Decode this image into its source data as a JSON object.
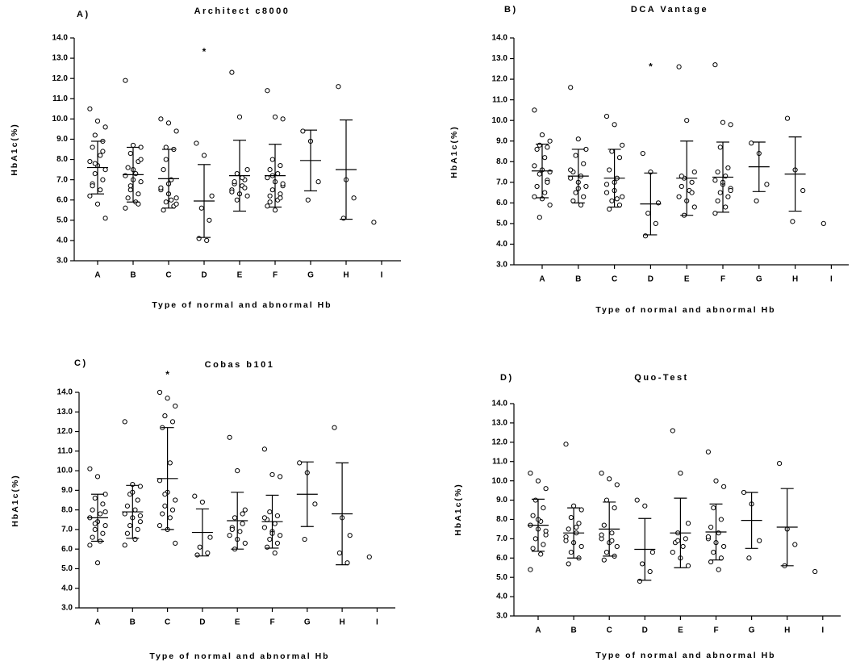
{
  "chart_data": [
    {
      "type": "dot",
      "panel": "A)",
      "title": "Architect c8000",
      "ylabel": "HbA1c(%)",
      "xlabel": "Type of normal and abnormal Hb",
      "categories": [
        "A",
        "B",
        "C",
        "D",
        "E",
        "F",
        "G",
        "H",
        "I"
      ],
      "points": [
        [
          10.5,
          9.9,
          9.6,
          9.2,
          8.9,
          8.6,
          8.2,
          7.9,
          7.7,
          7.5,
          7.3,
          7.0,
          6.8,
          6.5,
          6.2,
          5.8,
          5.1,
          7.8,
          8.4,
          6.7
        ],
        [
          11.9,
          8.7,
          8.6,
          8.3,
          7.9,
          7.6,
          7.3,
          7.2,
          7.0,
          6.9,
          6.5,
          6.3,
          6.1,
          5.9,
          5.6,
          7.5,
          8.0,
          6.7,
          5.8
        ],
        [
          10.0,
          9.8,
          9.4,
          8.6,
          8.5,
          7.5,
          7.0,
          6.5,
          6.3,
          6.1,
          5.9,
          5.7,
          5.5,
          6.0,
          6.6,
          6.8,
          5.8,
          8.0
        ],
        [
          8.8,
          8.2,
          6.2,
          5.6,
          5.0,
          4.1,
          4.0
        ],
        [
          12.3,
          10.1,
          7.5,
          7.3,
          7.0,
          6.8,
          6.7,
          6.5,
          6.3,
          6.2,
          6.0,
          6.6,
          6.9,
          7.1,
          6.4
        ],
        [
          11.4,
          10.1,
          10.0,
          8.0,
          7.7,
          7.5,
          7.3,
          7.1,
          6.9,
          6.7,
          6.5,
          6.3,
          6.2,
          6.0,
          5.7,
          5.5,
          6.8,
          7.2,
          6.1,
          5.9
        ],
        [
          9.4,
          8.9,
          6.9,
          6.0
        ],
        [
          11.6,
          7.0,
          6.1,
          5.1
        ],
        [
          4.9
        ]
      ],
      "means": [
        7.6,
        7.25,
        7.05,
        5.95,
        7.2,
        7.2,
        7.95,
        7.5,
        null
      ],
      "sds": [
        1.3,
        1.35,
        1.45,
        1.8,
        1.75,
        1.55,
        1.5,
        2.45,
        null
      ],
      "annotations": [
        {
          "x": "D",
          "y": 13.4,
          "text": "*"
        }
      ],
      "ylim": [
        3,
        14
      ],
      "yticks": [
        {
          "value": 3,
          "label": "3.0"
        },
        {
          "value": 4,
          "label": "4.0"
        },
        {
          "value": 5,
          "label": "5.0"
        },
        {
          "value": 6,
          "label": "6.0"
        },
        {
          "value": 7,
          "label": "7.0"
        },
        {
          "value": 8,
          "label": "8.0"
        },
        {
          "value": 9,
          "label": "9.0"
        },
        {
          "value": 10,
          "label": "10.0"
        },
        {
          "value": 11,
          "label": "11.0"
        },
        {
          "value": 12,
          "label": "12.0"
        },
        {
          "value": 13,
          "label": "13.0"
        },
        {
          "value": 14,
          "label": "14.0"
        }
      ],
      "color": "#000000"
    },
    {
      "type": "dot",
      "panel": "B)",
      "title": "DCA Vantage",
      "ylabel": "HbA1c(%)",
      "xlabel": "Type of normal and abnormal Hb",
      "categories": [
        "A",
        "B",
        "C",
        "D",
        "E",
        "F",
        "G",
        "H",
        "I"
      ],
      "points": [
        [
          10.5,
          9.3,
          9.0,
          8.8,
          8.7,
          8.6,
          8.2,
          7.8,
          7.6,
          7.5,
          7.4,
          7.1,
          6.8,
          6.5,
          6.3,
          6.2,
          5.9,
          5.3,
          7.0
        ],
        [
          11.6,
          9.1,
          8.6,
          8.3,
          7.9,
          7.5,
          7.3,
          7.2,
          7.0,
          6.8,
          6.5,
          6.3,
          6.1,
          5.9,
          7.6,
          6.7
        ],
        [
          10.2,
          9.8,
          8.8,
          8.5,
          8.2,
          7.6,
          7.2,
          6.9,
          6.6,
          6.3,
          6.1,
          5.9,
          5.7,
          6.2,
          6.5,
          7.0
        ],
        [
          8.4,
          7.5,
          6.0,
          5.5,
          5.0,
          4.4
        ],
        [
          12.6,
          10.0,
          7.5,
          7.2,
          7.0,
          6.8,
          6.6,
          6.3,
          6.1,
          5.8,
          5.4,
          6.5,
          7.3
        ],
        [
          12.7,
          9.9,
          9.8,
          8.7,
          7.7,
          7.5,
          7.3,
          7.1,
          6.9,
          6.7,
          6.5,
          6.3,
          6.1,
          5.8,
          5.5,
          7.0,
          6.6
        ],
        [
          8.9,
          8.4,
          6.9,
          6.1
        ],
        [
          10.1,
          7.6,
          6.6,
          5.1
        ],
        [
          5.0
        ]
      ],
      "means": [
        7.55,
        7.3,
        7.2,
        5.95,
        7.2,
        7.25,
        7.75,
        7.4,
        null
      ],
      "sds": [
        1.3,
        1.3,
        1.4,
        1.5,
        1.8,
        1.7,
        1.2,
        1.8,
        null
      ],
      "annotations": [
        {
          "x": "D",
          "y": 12.7,
          "text": "*"
        }
      ],
      "ylim": [
        3,
        14
      ],
      "yticks": [
        {
          "value": 3,
          "label": "3.0"
        },
        {
          "value": 4,
          "label": "4.0"
        },
        {
          "value": 5,
          "label": "5.0"
        },
        {
          "value": 6,
          "label": "6.0"
        },
        {
          "value": 7,
          "label": "7.0"
        },
        {
          "value": 8,
          "label": "8.0"
        },
        {
          "value": 9,
          "label": "9.0"
        },
        {
          "value": 10,
          "label": "10.0"
        },
        {
          "value": 11,
          "label": "11.0"
        },
        {
          "value": 12,
          "label": "12.0"
        },
        {
          "value": 13,
          "label": "13.0"
        },
        {
          "value": 14,
          "label": "14.0"
        }
      ],
      "color": "#000000"
    },
    {
      "type": "dot",
      "panel": "C)",
      "title": "Cobas b101",
      "ylabel": "HbA1c(%)",
      "xlabel": "Type of normal and abnormal Hb",
      "categories": [
        "A",
        "B",
        "C",
        "D",
        "E",
        "F",
        "G",
        "H",
        "I"
      ],
      "points": [
        [
          10.1,
          9.7,
          8.8,
          8.6,
          8.3,
          8.0,
          7.8,
          7.6,
          7.4,
          7.2,
          7.0,
          6.8,
          6.6,
          6.4,
          6.2,
          5.3,
          7.9,
          7.3
        ],
        [
          12.5,
          9.3,
          9.2,
          8.8,
          8.5,
          8.2,
          8.0,
          7.8,
          7.6,
          7.4,
          7.2,
          7.0,
          6.8,
          6.5,
          6.2,
          8.9,
          7.7
        ],
        [
          14.0,
          13.7,
          13.3,
          12.8,
          12.5,
          12.2,
          10.4,
          9.5,
          8.9,
          8.5,
          8.2,
          8.0,
          7.8,
          7.6,
          7.2,
          7.0,
          6.3,
          8.8
        ],
        [
          8.7,
          8.4,
          6.6,
          6.1,
          5.8,
          5.7
        ],
        [
          11.7,
          10.0,
          8.0,
          7.6,
          7.3,
          7.1,
          6.9,
          6.7,
          6.5,
          6.3,
          6.0,
          7.8,
          7.0
        ],
        [
          11.1,
          9.8,
          9.7,
          7.9,
          7.7,
          7.5,
          7.3,
          7.1,
          6.9,
          6.7,
          6.5,
          6.3,
          6.1,
          5.8,
          7.6,
          6.8
        ],
        [
          10.4,
          9.9,
          8.3,
          6.5
        ],
        [
          12.2,
          7.6,
          6.7,
          5.8,
          5.3
        ],
        [
          5.6
        ]
      ],
      "means": [
        7.6,
        7.9,
        9.6,
        6.85,
        7.45,
        7.4,
        8.8,
        7.8,
        null
      ],
      "sds": [
        1.2,
        1.35,
        2.6,
        1.2,
        1.45,
        1.35,
        1.65,
        2.6,
        null
      ],
      "annotations": [
        {
          "x": "C",
          "y": 15.0,
          "text": "*"
        }
      ],
      "ylim": [
        3,
        14
      ],
      "yticks": [
        {
          "value": 3,
          "label": "3.0"
        },
        {
          "value": 4,
          "label": "4.0"
        },
        {
          "value": 5,
          "label": "5.0"
        },
        {
          "value": 6,
          "label": "6.0"
        },
        {
          "value": 7,
          "label": "7.0"
        },
        {
          "value": 8,
          "label": "8.0"
        },
        {
          "value": 9,
          "label": "9.0"
        },
        {
          "value": 10,
          "label": "10.0"
        },
        {
          "value": 11,
          "label": "11.0"
        },
        {
          "value": 12,
          "label": "12.0"
        },
        {
          "value": 13,
          "label": "13.0"
        },
        {
          "value": 14,
          "label": "14.0"
        }
      ],
      "color": "#000000"
    },
    {
      "type": "dot",
      "panel": "D)",
      "title": "Quo-Test",
      "ylabel": "HbA1c(%)",
      "xlabel": "Type of normal and abnormal Hb",
      "categories": [
        "A",
        "B",
        "C",
        "D",
        "E",
        "F",
        "G",
        "H",
        "I"
      ],
      "points": [
        [
          10.4,
          10.0,
          9.6,
          9.0,
          8.6,
          8.2,
          7.9,
          7.7,
          7.5,
          7.2,
          7.0,
          6.7,
          6.5,
          6.2,
          5.4,
          8.0,
          7.4
        ],
        [
          11.9,
          8.7,
          8.5,
          8.1,
          7.8,
          7.5,
          7.3,
          7.1,
          6.8,
          6.6,
          6.3,
          6.0,
          5.7,
          7.6,
          6.9
        ],
        [
          10.4,
          10.1,
          9.8,
          9.0,
          8.6,
          7.7,
          7.3,
          7.0,
          6.8,
          6.6,
          6.3,
          6.1,
          5.9,
          6.9,
          7.2
        ],
        [
          9.0,
          8.7,
          6.3,
          5.7,
          5.3,
          4.8
        ],
        [
          12.6,
          10.4,
          7.8,
          7.3,
          7.0,
          6.8,
          6.6,
          6.3,
          6.0,
          5.6,
          6.9
        ],
        [
          11.5,
          10.0,
          9.7,
          8.6,
          8.0,
          7.6,
          7.3,
          7.0,
          6.8,
          6.6,
          6.3,
          6.0,
          5.8,
          5.4,
          7.1
        ],
        [
          9.4,
          8.8,
          6.9,
          6.0
        ],
        [
          10.9,
          7.5,
          6.7,
          5.6
        ],
        [
          5.3
        ]
      ],
      "means": [
        7.7,
        7.3,
        7.5,
        6.45,
        7.3,
        7.35,
        7.95,
        7.6,
        null
      ],
      "sds": [
        1.35,
        1.3,
        1.4,
        1.6,
        1.8,
        1.45,
        1.45,
        2.0,
        null
      ],
      "annotations": [],
      "ylim": [
        3,
        14
      ],
      "yticks": [
        {
          "value": 3,
          "label": "3.0"
        },
        {
          "value": 4,
          "label": "4.0"
        },
        {
          "value": 5,
          "label": "5.0"
        },
        {
          "value": 6,
          "label": "6.0"
        },
        {
          "value": 7,
          "label": "7.0"
        },
        {
          "value": 8,
          "label": "8.0"
        },
        {
          "value": 9,
          "label": "9.0"
        },
        {
          "value": 10,
          "label": "10.0"
        },
        {
          "value": 11,
          "label": "11.0"
        },
        {
          "value": 12,
          "label": "12.0"
        },
        {
          "value": 13,
          "label": "13.0"
        },
        {
          "value": 14,
          "label": "14.0"
        }
      ],
      "color": "#000000"
    }
  ]
}
